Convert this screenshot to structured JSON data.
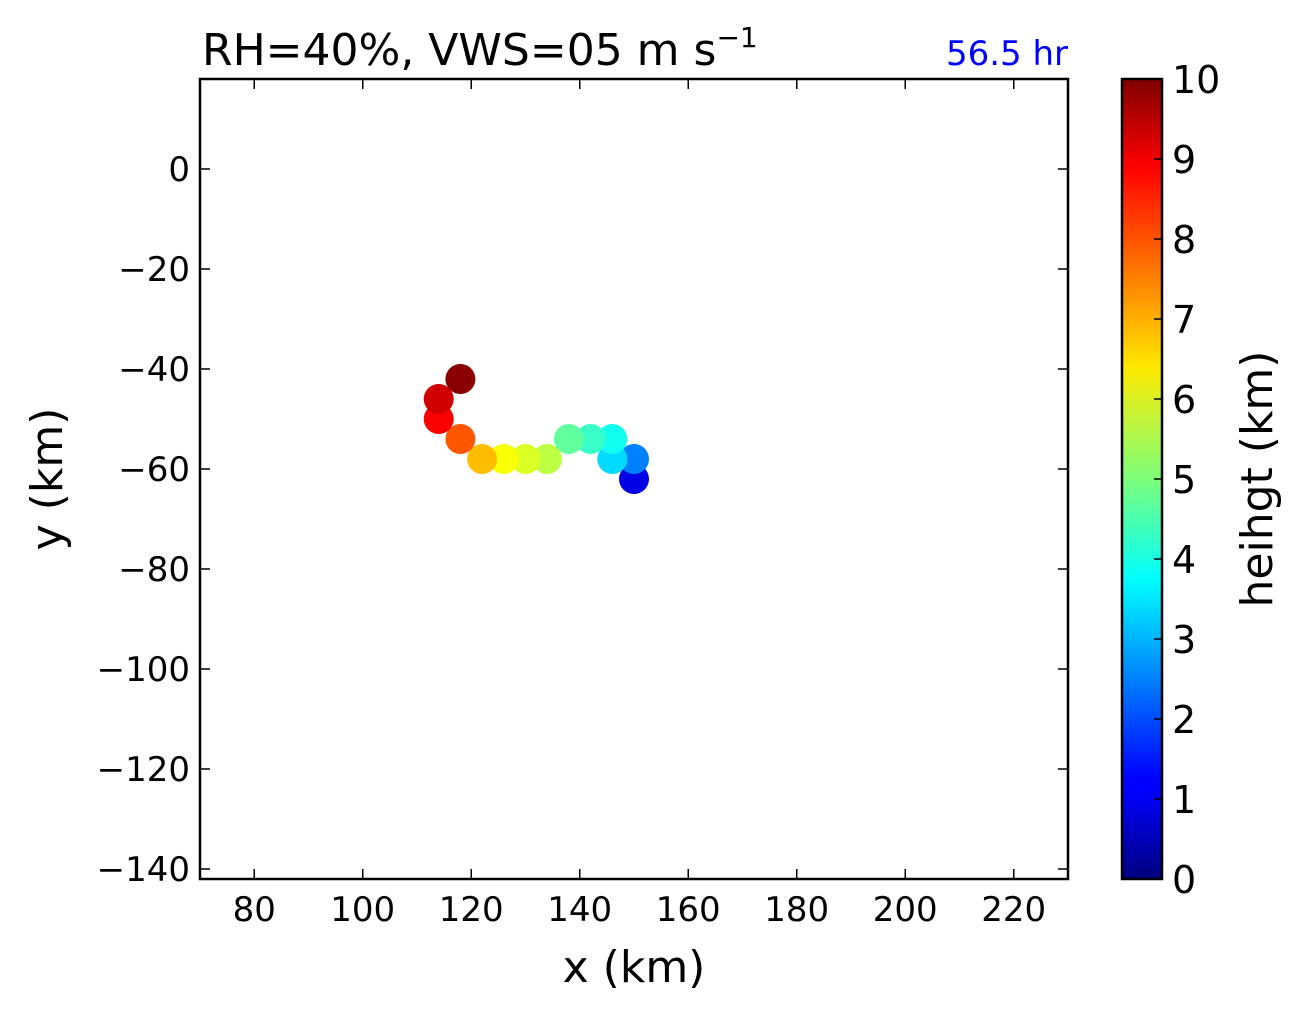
{
  "chart_data": {
    "type": "scatter",
    "title": {
      "main": "RH=40%, VWS=05 m s",
      "superscript": "−1"
    },
    "annotation": {
      "text": "56.5 hr",
      "color": "#0000ff",
      "placement": "top-right"
    },
    "xlabel": "x (km)",
    "ylabel": "y (km)",
    "xlim": [
      70,
      230
    ],
    "ylim": [
      -142,
      18
    ],
    "xticks": [
      80,
      100,
      120,
      140,
      160,
      180,
      200,
      220
    ],
    "xtick_labels": [
      "80",
      "100",
      "120",
      "140",
      "160",
      "180",
      "200",
      "220"
    ],
    "yticks": [
      0,
      -20,
      -40,
      -60,
      -80,
      -100,
      -120,
      -140
    ],
    "ytick_labels": [
      "0",
      "−20",
      "−40",
      "−60",
      "−80",
      "−100",
      "−120",
      "−140"
    ],
    "grid": false,
    "colorbar": {
      "label": "heihgt (km)",
      "colormap": "jet",
      "range": [
        0,
        10
      ],
      "ticks": [
        0,
        1,
        2,
        3,
        4,
        5,
        6,
        7,
        8,
        9,
        10
      ],
      "tick_labels": [
        "0",
        "1",
        "2",
        "3",
        "4",
        "5",
        "6",
        "7",
        "8",
        "9",
        "10"
      ]
    },
    "points": [
      {
        "x": 150,
        "y": -62,
        "height": 1.0
      },
      {
        "x": 150,
        "y": -58,
        "height": 2.5
      },
      {
        "x": 146,
        "y": -58,
        "height": 3.4
      },
      {
        "x": 146,
        "y": -54,
        "height": 3.9
      },
      {
        "x": 142,
        "y": -54,
        "height": 4.3
      },
      {
        "x": 138,
        "y": -54,
        "height": 4.7
      },
      {
        "x": 134,
        "y": -58,
        "height": 5.6
      },
      {
        "x": 130,
        "y": -58,
        "height": 5.9
      },
      {
        "x": 126,
        "y": -58,
        "height": 6.2
      },
      {
        "x": 122,
        "y": -58,
        "height": 6.9
      },
      {
        "x": 118,
        "y": -54,
        "height": 7.9
      },
      {
        "x": 114,
        "y": -50,
        "height": 8.8
      },
      {
        "x": 114,
        "y": -46,
        "height": 9.2
      },
      {
        "x": 118,
        "y": -42,
        "height": 9.9
      }
    ]
  }
}
